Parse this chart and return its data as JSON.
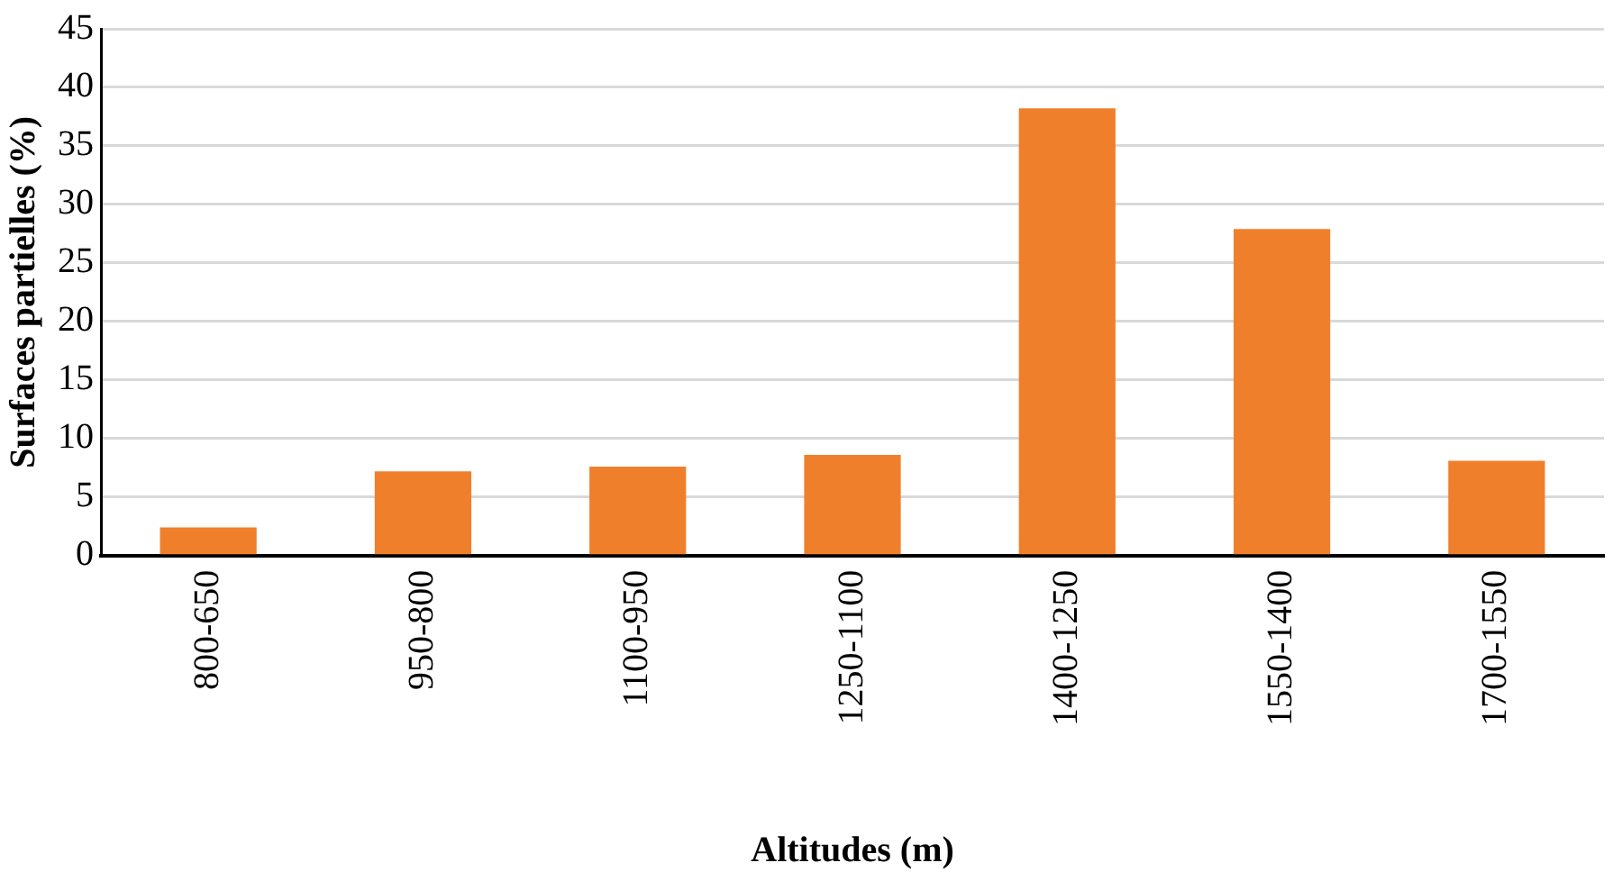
{
  "chart_data": {
    "type": "bar",
    "xlabel": "Altitudes (m)",
    "ylabel": "Surfaces partielles (%)",
    "categories": [
      "800-650",
      "950-800",
      "1100-950",
      "1250-1100",
      "1400-1250",
      "1550-1400",
      "1700-1550"
    ],
    "values": [
      2.4,
      7.2,
      7.6,
      8.6,
      38.2,
      27.9,
      8.1
    ],
    "color": "#f07f2c",
    "ylim": [
      0,
      45
    ],
    "yticks": [
      0,
      5,
      10,
      15,
      20,
      25,
      30,
      35,
      40,
      45
    ],
    "grid": "y",
    "legend": false
  }
}
